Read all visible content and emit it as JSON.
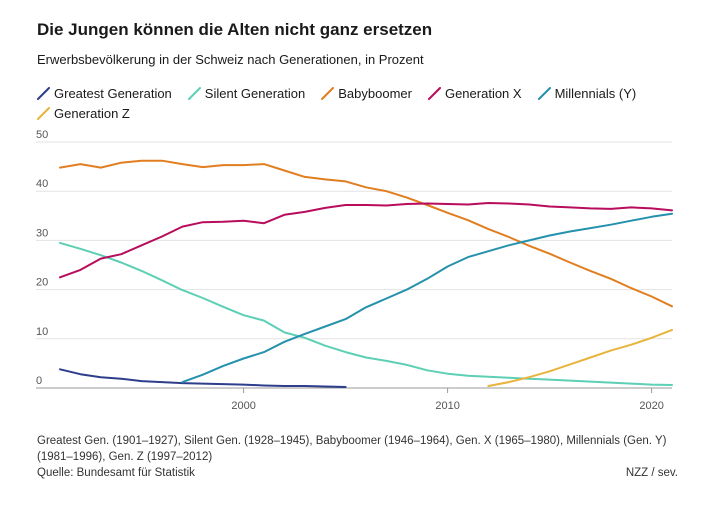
{
  "chart_data": {
    "type": "line",
    "title": "Die Jungen können die Alten nicht ganz ersetzen",
    "subtitle": "Erwerbsbevölkerung in der Schweiz nach Generationen, in Prozent",
    "xlim": [
      1991,
      2021
    ],
    "ylim": [
      0,
      50
    ],
    "x_ticks": [
      2000,
      2010,
      2020
    ],
    "y_ticks": [
      0,
      10,
      20,
      30,
      40,
      50
    ],
    "grid": "horizontal",
    "legend_position": "top",
    "series": [
      {
        "name": "Greatest Generation",
        "color": "#2c3e8c",
        "points": [
          [
            1991,
            3.8
          ],
          [
            1992,
            2.8
          ],
          [
            1993,
            2.2
          ],
          [
            1994,
            1.9
          ],
          [
            1995,
            1.4
          ],
          [
            1996,
            1.2
          ],
          [
            1997,
            1.0
          ],
          [
            1998,
            0.9
          ],
          [
            1999,
            0.8
          ],
          [
            2000,
            0.7
          ],
          [
            2001,
            0.5
          ],
          [
            2002,
            0.4
          ],
          [
            2003,
            0.4
          ],
          [
            2004,
            0.3
          ],
          [
            2005,
            0.2
          ]
        ]
      },
      {
        "name": "Silent Generation",
        "color": "#5ccfb4",
        "points": [
          [
            1991,
            29.5
          ],
          [
            1992,
            28.3
          ],
          [
            1993,
            27.0
          ],
          [
            1994,
            25.5
          ],
          [
            1995,
            23.8
          ],
          [
            1996,
            21.9
          ],
          [
            1997,
            19.9
          ],
          [
            1998,
            18.3
          ],
          [
            1999,
            16.5
          ],
          [
            2000,
            14.8
          ],
          [
            2001,
            13.7
          ],
          [
            2002,
            11.3
          ],
          [
            2003,
            10.2
          ],
          [
            2004,
            8.6
          ],
          [
            2005,
            7.3
          ],
          [
            2006,
            6.2
          ],
          [
            2007,
            5.5
          ],
          [
            2008,
            4.7
          ],
          [
            2009,
            3.6
          ],
          [
            2010,
            2.9
          ],
          [
            2011,
            2.5
          ],
          [
            2012,
            2.3
          ],
          [
            2013,
            2.1
          ],
          [
            2014,
            1.9
          ],
          [
            2015,
            1.7
          ],
          [
            2016,
            1.5
          ],
          [
            2017,
            1.3
          ],
          [
            2018,
            1.1
          ],
          [
            2019,
            0.9
          ],
          [
            2020,
            0.7
          ],
          [
            2021,
            0.6
          ]
        ]
      },
      {
        "name": "Babyboomer",
        "color": "#e07e20",
        "points": [
          [
            1991,
            44.8
          ],
          [
            1992,
            45.5
          ],
          [
            1993,
            44.8
          ],
          [
            1994,
            45.8
          ],
          [
            1995,
            46.2
          ],
          [
            1996,
            46.2
          ],
          [
            1997,
            45.5
          ],
          [
            1998,
            44.9
          ],
          [
            1999,
            45.3
          ],
          [
            2000,
            45.3
          ],
          [
            2001,
            45.5
          ],
          [
            2002,
            44.2
          ],
          [
            2003,
            42.9
          ],
          [
            2004,
            42.4
          ],
          [
            2005,
            42.0
          ],
          [
            2006,
            40.8
          ],
          [
            2007,
            40.0
          ],
          [
            2008,
            38.7
          ],
          [
            2009,
            37.2
          ],
          [
            2010,
            35.6
          ],
          [
            2011,
            34.1
          ],
          [
            2012,
            32.3
          ],
          [
            2013,
            30.7
          ],
          [
            2014,
            28.9
          ],
          [
            2015,
            27.3
          ],
          [
            2016,
            25.5
          ],
          [
            2017,
            23.8
          ],
          [
            2018,
            22.2
          ],
          [
            2019,
            20.3
          ],
          [
            2020,
            18.6
          ],
          [
            2021,
            16.6
          ]
        ]
      },
      {
        "name": "Generation X",
        "color": "#b80c5c",
        "points": [
          [
            1991,
            22.5
          ],
          [
            1992,
            24.0
          ],
          [
            1993,
            26.3
          ],
          [
            1994,
            27.2
          ],
          [
            1995,
            29.0
          ],
          [
            1996,
            30.8
          ],
          [
            1997,
            32.8
          ],
          [
            1998,
            33.7
          ],
          [
            1999,
            33.8
          ],
          [
            2000,
            34.0
          ],
          [
            2001,
            33.5
          ],
          [
            2002,
            35.2
          ],
          [
            2003,
            35.8
          ],
          [
            2004,
            36.6
          ],
          [
            2005,
            37.2
          ],
          [
            2006,
            37.2
          ],
          [
            2007,
            37.1
          ],
          [
            2008,
            37.4
          ],
          [
            2009,
            37.5
          ],
          [
            2010,
            37.4
          ],
          [
            2011,
            37.3
          ],
          [
            2012,
            37.6
          ],
          [
            2013,
            37.5
          ],
          [
            2014,
            37.3
          ],
          [
            2015,
            36.9
          ],
          [
            2016,
            36.7
          ],
          [
            2017,
            36.5
          ],
          [
            2018,
            36.4
          ],
          [
            2019,
            36.7
          ],
          [
            2020,
            36.5
          ],
          [
            2021,
            36.1
          ]
        ]
      },
      {
        "name": "Millennials (Y)",
        "color": "#2591ad",
        "points": [
          [
            1997,
            1.2
          ],
          [
            1998,
            2.7
          ],
          [
            1999,
            4.5
          ],
          [
            2000,
            6.0
          ],
          [
            2001,
            7.3
          ],
          [
            2002,
            9.4
          ],
          [
            2003,
            11.0
          ],
          [
            2004,
            12.5
          ],
          [
            2005,
            14.0
          ],
          [
            2006,
            16.4
          ],
          [
            2007,
            18.2
          ],
          [
            2008,
            20.0
          ],
          [
            2009,
            22.2
          ],
          [
            2010,
            24.7
          ],
          [
            2011,
            26.6
          ],
          [
            2012,
            27.8
          ],
          [
            2013,
            29.0
          ],
          [
            2014,
            30.0
          ],
          [
            2015,
            31.0
          ],
          [
            2016,
            31.8
          ],
          [
            2017,
            32.5
          ],
          [
            2018,
            33.2
          ],
          [
            2019,
            34.0
          ],
          [
            2020,
            34.8
          ],
          [
            2021,
            35.4
          ]
        ]
      },
      {
        "name": "Generation Z",
        "color": "#e8b43c",
        "points": [
          [
            2012,
            0.4
          ],
          [
            2013,
            1.2
          ],
          [
            2014,
            2.2
          ],
          [
            2015,
            3.4
          ],
          [
            2016,
            4.8
          ],
          [
            2017,
            6.2
          ],
          [
            2018,
            7.6
          ],
          [
            2019,
            8.8
          ],
          [
            2020,
            10.2
          ],
          [
            2021,
            11.8
          ]
        ]
      }
    ]
  },
  "footnote": "Greatest Gen. (1901–1927), Silent Gen. (1928–1945), Babyboomer (1946–1964), Gen. X (1965–1980), Millennials (Gen. Y) (1981–1996), Gen. Z (1997–2012)",
  "source": "Quelle: Bundesamt für Statistik",
  "credit": "NZZ / sev."
}
